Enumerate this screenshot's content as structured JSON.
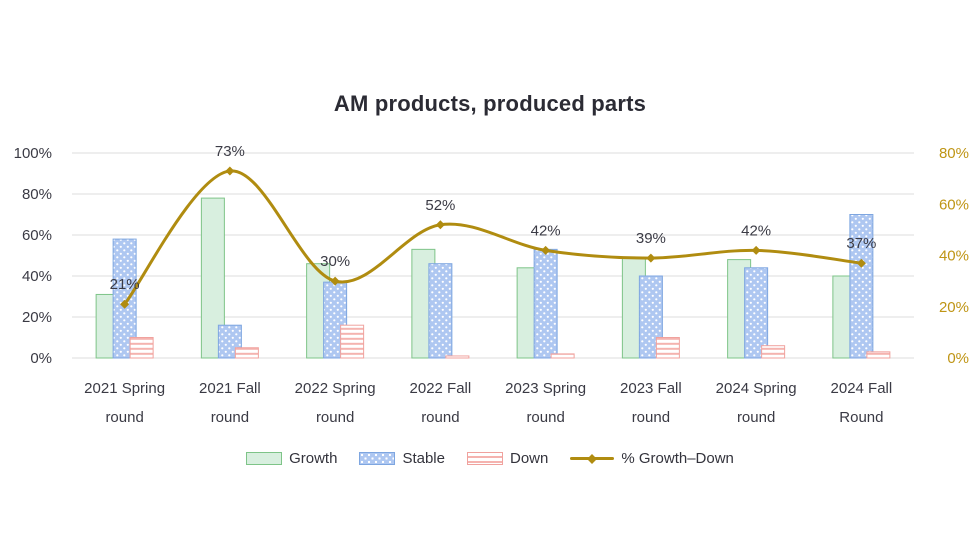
{
  "chart_data": {
    "type": "combo-bar-line",
    "title": "AM products, produced parts",
    "categories_line1": [
      "2021 Spring",
      "2021 Fall",
      "2022 Spring",
      "2022 Fall",
      "2023 Spring",
      "2023 Fall",
      "2024 Spring",
      "2024 Fall"
    ],
    "categories_line2": [
      "round",
      "round",
      "round",
      "round",
      "round",
      "round",
      "round",
      "Round"
    ],
    "bar_series": [
      {
        "name": "Growth",
        "pattern": "solid",
        "fill": "#d8efdf",
        "border": "#7ec488",
        "values": [
          31,
          78,
          46,
          53,
          44,
          49,
          48,
          40
        ]
      },
      {
        "name": "Stable",
        "pattern": "dots",
        "fill": "#aec7f1",
        "border": "#7ea6e0",
        "dot_color": "#ffffff",
        "values": [
          58,
          16,
          37,
          46,
          53,
          40,
          44,
          70
        ]
      },
      {
        "name": "Down",
        "pattern": "hstripes",
        "fill": "#ffffff",
        "border": "#f0a29e",
        "stripe_color": "#f5b3af",
        "values": [
          10,
          5,
          16,
          1,
          2,
          10,
          6,
          3
        ]
      }
    ],
    "line_series": {
      "name": "% Growth–Down",
      "color": "#b08c10",
      "marker": "diamond",
      "axis": "right",
      "values": [
        21,
        73,
        30,
        52,
        42,
        39,
        42,
        37
      ],
      "point_labels": [
        "21%",
        "73%",
        "30%",
        "52%",
        "42%",
        "39%",
        "42%",
        "37%"
      ]
    },
    "left_axis": {
      "min": 0,
      "max": 100,
      "ticks": [
        "0%",
        "20%",
        "40%",
        "60%",
        "80%",
        "100%"
      ],
      "color": "#3a3a44"
    },
    "right_axis": {
      "min": 0,
      "max": 80,
      "ticks": [
        "0%",
        "20%",
        "40%",
        "60%",
        "80%"
      ],
      "color": "#bf9515"
    },
    "label_color": "#3b3b45",
    "gridline_color": "#dcdcdc",
    "grid": true,
    "legend_position": "bottom"
  }
}
